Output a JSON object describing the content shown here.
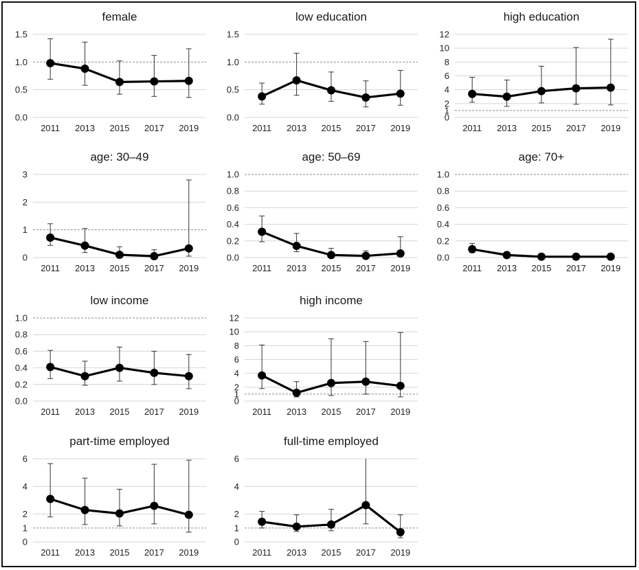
{
  "chart_data": [
    {
      "type": "line",
      "title": "female",
      "x": [
        "2011",
        "2013",
        "2015",
        "2017",
        "2019"
      ],
      "yticks": [
        "0.0",
        "0.5",
        "1.0",
        "1.5"
      ],
      "ytick_values": [
        0,
        0.5,
        1,
        1.5
      ],
      "ylim": [
        0,
        1.5
      ],
      "reference": 1,
      "values": [
        0.98,
        0.88,
        0.64,
        0.65,
        0.66
      ],
      "lower": [
        0.69,
        0.58,
        0.42,
        0.38,
        0.36
      ],
      "upper": [
        1.42,
        1.36,
        1.02,
        1.12,
        1.24
      ]
    },
    {
      "type": "line",
      "title": "low education",
      "x": [
        "2011",
        "2013",
        "2015",
        "2017",
        "2019"
      ],
      "yticks": [
        "0.0",
        "0.5",
        "1.0",
        "1.5"
      ],
      "ytick_values": [
        0,
        0.5,
        1,
        1.5
      ],
      "ylim": [
        0,
        1.5
      ],
      "reference": 1,
      "values": [
        0.38,
        0.67,
        0.49,
        0.36,
        0.43
      ],
      "lower": [
        0.24,
        0.4,
        0.29,
        0.19,
        0.22
      ],
      "upper": [
        0.62,
        1.16,
        0.82,
        0.66,
        0.85
      ]
    },
    {
      "type": "line",
      "title": "high education",
      "x": [
        "2011",
        "2013",
        "2015",
        "2017",
        "2019"
      ],
      "yticks": [
        "0",
        "1",
        "2",
        "4",
        "6",
        "8",
        "10",
        "12"
      ],
      "ytick_values": [
        0,
        1,
        2,
        4,
        6,
        8,
        10,
        12
      ],
      "ylim": [
        0,
        12
      ],
      "reference": 1,
      "values": [
        3.4,
        3.0,
        3.8,
        4.2,
        4.3
      ],
      "lower": [
        2.2,
        1.6,
        2.1,
        1.9,
        1.8
      ],
      "upper": [
        5.8,
        5.4,
        7.4,
        10.1,
        11.3
      ]
    },
    {
      "type": "line",
      "title": "age: 30–49",
      "x": [
        "2011",
        "2013",
        "2015",
        "2017",
        "2019"
      ],
      "yticks": [
        "0",
        "1",
        "2",
        "3"
      ],
      "ytick_values": [
        0,
        1,
        2,
        3
      ],
      "ylim": [
        0,
        3
      ],
      "reference": 1,
      "values": [
        0.72,
        0.43,
        0.1,
        0.05,
        0.33
      ],
      "lower": [
        0.44,
        0.18,
        0.02,
        0.01,
        0.05
      ],
      "upper": [
        1.22,
        1.05,
        0.39,
        0.28,
        2.8
      ]
    },
    {
      "type": "line",
      "title": "age: 50–69",
      "x": [
        "2011",
        "2013",
        "2015",
        "2017",
        "2019"
      ],
      "yticks": [
        "0.0",
        "0.2",
        "0.4",
        "0.6",
        "0.8",
        "1.0"
      ],
      "ytick_values": [
        0,
        0.2,
        0.4,
        0.6,
        0.8,
        1
      ],
      "ylim": [
        0,
        1
      ],
      "reference": 1,
      "values": [
        0.31,
        0.14,
        0.03,
        0.02,
        0.05
      ],
      "lower": [
        0.19,
        0.07,
        0.01,
        0.0,
        0.01
      ],
      "upper": [
        0.5,
        0.29,
        0.11,
        0.08,
        0.25
      ]
    },
    {
      "type": "line",
      "title": "age: 70+",
      "x": [
        "2011",
        "2013",
        "2015",
        "2017",
        "2019"
      ],
      "yticks": [
        "0.0",
        "0.2",
        "0.4",
        "0.6",
        "0.8",
        "1.0"
      ],
      "ytick_values": [
        0,
        0.2,
        0.4,
        0.6,
        0.8,
        1
      ],
      "ylim": [
        0,
        1
      ],
      "reference": 1,
      "values": [
        0.1,
        0.03,
        0.01,
        0.01,
        0.01
      ],
      "lower": [
        0.06,
        0.01,
        0.0,
        0.0,
        0.0
      ],
      "upper": [
        0.17,
        0.05,
        0.02,
        0.02,
        0.02
      ]
    },
    {
      "type": "line",
      "title": "low income",
      "x": [
        "2011",
        "2013",
        "2015",
        "2017",
        "2019"
      ],
      "yticks": [
        "0.0",
        "0.2",
        "0.4",
        "0.6",
        "0.8",
        "1.0"
      ],
      "ytick_values": [
        0,
        0.2,
        0.4,
        0.6,
        0.8,
        1
      ],
      "ylim": [
        0,
        1
      ],
      "reference": 1,
      "values": [
        0.41,
        0.3,
        0.4,
        0.34,
        0.3
      ],
      "lower": [
        0.27,
        0.19,
        0.24,
        0.2,
        0.15
      ],
      "upper": [
        0.61,
        0.48,
        0.65,
        0.6,
        0.56
      ]
    },
    {
      "type": "line",
      "title": "high income",
      "x": [
        "2011",
        "2013",
        "2015",
        "2017",
        "2019"
      ],
      "yticks": [
        "0",
        "1",
        "2",
        "4",
        "6",
        "8",
        "10",
        "12"
      ],
      "ytick_values": [
        0,
        1,
        2,
        4,
        6,
        8,
        10,
        12
      ],
      "ylim": [
        0,
        12
      ],
      "reference": 1,
      "values": [
        3.7,
        1.2,
        2.6,
        2.8,
        2.2
      ],
      "lower": [
        1.8,
        0.6,
        0.8,
        1.0,
        0.6
      ],
      "upper": [
        8.1,
        2.8,
        9.0,
        8.6,
        9.9
      ]
    },
    {
      "type": "line",
      "title": "part-time employed",
      "x": [
        "2011",
        "2013",
        "2015",
        "2017",
        "2019"
      ],
      "yticks": [
        "0",
        "1",
        "2",
        "4",
        "6"
      ],
      "ytick_values": [
        0,
        1,
        2,
        4,
        6
      ],
      "ylim": [
        0,
        6
      ],
      "reference": 1,
      "values": [
        3.1,
        2.3,
        2.05,
        2.6,
        1.95
      ],
      "lower": [
        1.8,
        1.25,
        1.15,
        1.3,
        0.7
      ],
      "upper": [
        5.65,
        4.6,
        3.8,
        5.6,
        5.9
      ]
    },
    {
      "type": "line",
      "title": "full-time employed",
      "x": [
        "2011",
        "2013",
        "2015",
        "2017",
        "2019"
      ],
      "yticks": [
        "0",
        "1",
        "2",
        "4",
        "6"
      ],
      "ytick_values": [
        0,
        1,
        2,
        4,
        6
      ],
      "ylim": [
        0,
        6
      ],
      "reference": 1,
      "values": [
        1.45,
        1.1,
        1.25,
        2.65,
        0.7
      ],
      "lower": [
        1.0,
        0.75,
        0.8,
        1.3,
        0.3
      ],
      "upper": [
        2.2,
        1.95,
        2.35,
        6.0,
        1.95
      ]
    }
  ]
}
